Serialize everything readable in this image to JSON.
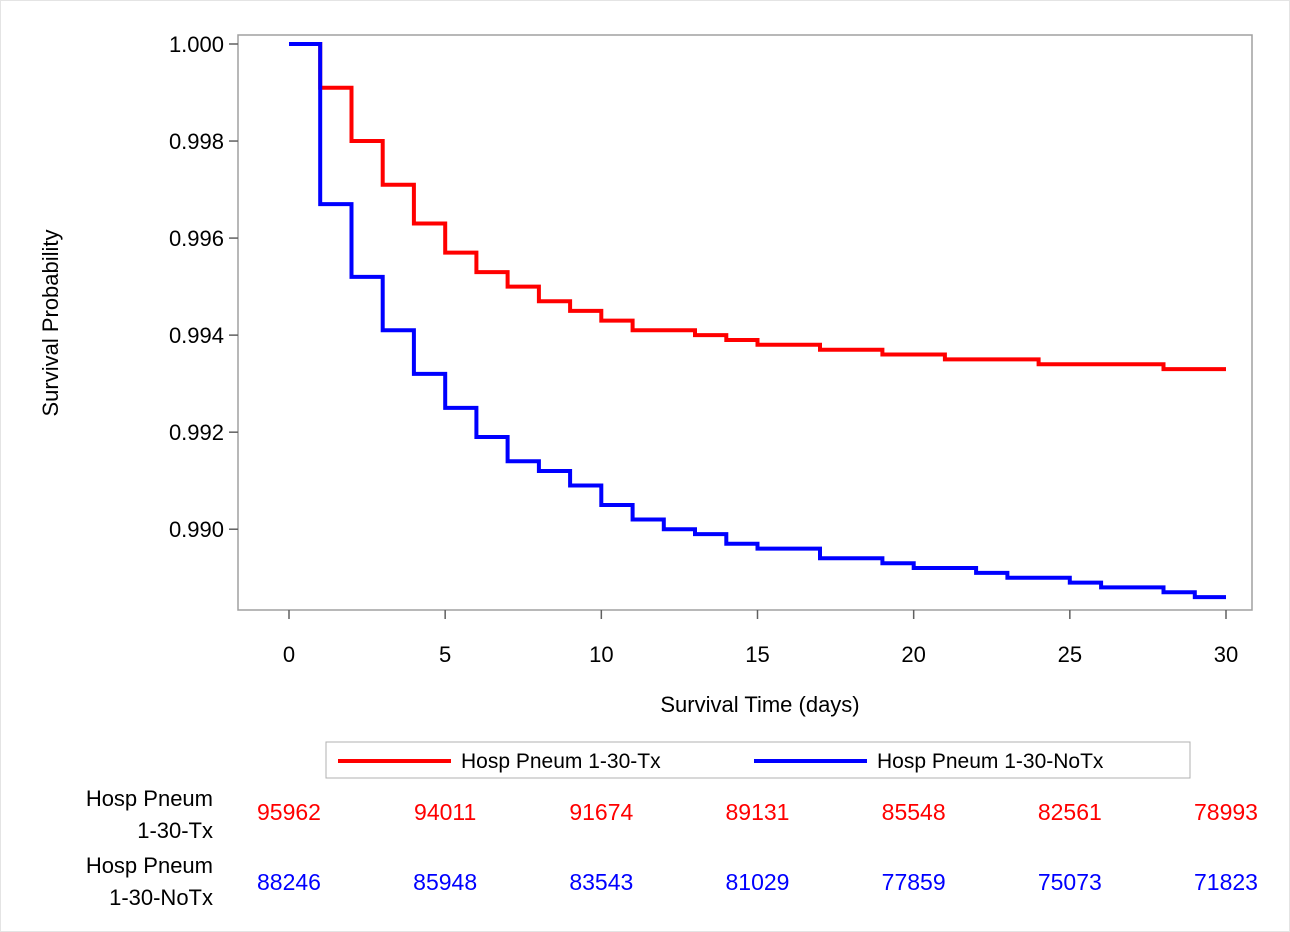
{
  "chart_data": {
    "type": "line",
    "title": "",
    "xlabel": "Survival Time (days)",
    "ylabel": "Survival Probability",
    "xlim": [
      0,
      30
    ],
    "ylim": [
      0.9885,
      1.0
    ],
    "x_ticks": [
      0,
      5,
      10,
      15,
      20,
      25,
      30
    ],
    "x_tick_labels": [
      "0",
      "5",
      "10",
      "15",
      "20",
      "25",
      "30"
    ],
    "y_ticks": [
      0.99,
      0.992,
      0.994,
      0.996,
      0.998,
      1.0
    ],
    "y_tick_labels": [
      "0.990",
      "0.992",
      "0.994",
      "0.996",
      "0.998",
      "1.000"
    ],
    "grid": false,
    "legend_position": "bottom",
    "step": true,
    "series": [
      {
        "name": "Hosp Pneum 1-30-Tx",
        "color": "#ff0000",
        "x": [
          0,
          1,
          2,
          3,
          4,
          5,
          6,
          7,
          8,
          9,
          10,
          11,
          12,
          13,
          14,
          15,
          16,
          17,
          18,
          19,
          20,
          21,
          22,
          23,
          24,
          25,
          26,
          27,
          28,
          29,
          30
        ],
        "y": [
          1.0,
          0.9991,
          0.998,
          0.9971,
          0.9963,
          0.9957,
          0.9953,
          0.995,
          0.9947,
          0.9945,
          0.9943,
          0.9941,
          0.9941,
          0.994,
          0.9939,
          0.9938,
          0.9938,
          0.9937,
          0.9937,
          0.9936,
          0.9936,
          0.9935,
          0.9935,
          0.9935,
          0.9934,
          0.9934,
          0.9934,
          0.9934,
          0.9933,
          0.9933,
          0.9933
        ]
      },
      {
        "name": "Hosp Pneum 1-30-NoTx",
        "color": "#0000ff",
        "x": [
          0,
          1,
          2,
          3,
          4,
          5,
          6,
          7,
          8,
          9,
          10,
          11,
          12,
          13,
          14,
          15,
          16,
          17,
          18,
          19,
          20,
          21,
          22,
          23,
          24,
          25,
          26,
          27,
          28,
          29,
          30
        ],
        "y": [
          1.0,
          0.9967,
          0.9952,
          0.9941,
          0.9932,
          0.9925,
          0.9919,
          0.9914,
          0.9912,
          0.9909,
          0.9905,
          0.9902,
          0.99,
          0.9899,
          0.9897,
          0.9896,
          0.9896,
          0.9894,
          0.9894,
          0.9893,
          0.9892,
          0.9892,
          0.9891,
          0.989,
          0.989,
          0.9889,
          0.9888,
          0.9888,
          0.9887,
          0.9886,
          0.9886
        ]
      }
    ],
    "risk_table": {
      "times": [
        0,
        5,
        10,
        15,
        20,
        25,
        30
      ],
      "rows": [
        {
          "label_line1": "Hosp Pneum",
          "label_line2": "1-30-Tx",
          "color": "#ff0000",
          "values": [
            "95962",
            "94011",
            "91674",
            "89131",
            "85548",
            "82561",
            "78993"
          ]
        },
        {
          "label_line1": "Hosp Pneum",
          "label_line2": "1-30-NoTx",
          "color": "#0000ff",
          "values": [
            "88246",
            "85948",
            "83543",
            "81029",
            "77859",
            "75073",
            "71823"
          ]
        }
      ]
    }
  }
}
